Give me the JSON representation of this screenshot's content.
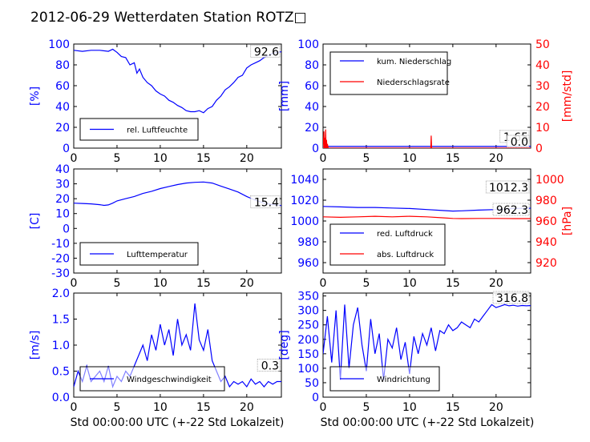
{
  "title": "2012-06-29 Wetterdaten Station ROTZ□",
  "x_label": "Std 00:00:00 UTC (+-22 Std Lokalzeit)",
  "colors": {
    "left_axis": "#0000ff",
    "right_axis": "#ff0000",
    "series_blue": "#0000ff",
    "series_red": "#ff0000"
  },
  "chart_data": [
    {
      "id": "humidity",
      "type": "line",
      "ylabel": "[%]",
      "ylim": [
        0,
        100
      ],
      "yticks": [
        0,
        20,
        40,
        60,
        80,
        100
      ],
      "xlim": [
        0,
        24
      ],
      "xticks": [
        0,
        5,
        10,
        15,
        20
      ],
      "series": [
        {
          "name": "rel. Luftfeuchte",
          "color": "#0000ff",
          "x": [
            0,
            1,
            2,
            3,
            4,
            4.5,
            5,
            5.5,
            6,
            6.5,
            7,
            7.3,
            7.6,
            8,
            8.5,
            9,
            9.5,
            10,
            10.5,
            11,
            11.5,
            12,
            12.5,
            13,
            13.5,
            14,
            14.5,
            15,
            15.5,
            16,
            16.5,
            17,
            17.5,
            18,
            18.5,
            19,
            19.5,
            20,
            20.5,
            21,
            21.5,
            22,
            22.5,
            23,
            23.5,
            24
          ],
          "y": [
            94,
            93,
            94,
            94,
            93,
            95,
            92,
            88,
            87,
            80,
            82,
            72,
            76,
            68,
            63,
            60,
            55,
            52,
            50,
            46,
            44,
            41,
            39,
            36,
            35,
            35,
            36,
            34,
            38,
            40,
            46,
            50,
            56,
            59,
            63,
            68,
            70,
            77,
            80,
            82,
            84,
            87,
            89,
            91,
            92,
            92.6
          ]
        }
      ],
      "last_value_label": "92.6"
    },
    {
      "id": "precip",
      "type": "line",
      "ylabel": "[mm]",
      "ylim": [
        0,
        100
      ],
      "yticks": [
        0,
        20,
        40,
        60,
        80,
        100
      ],
      "y2label": "[mm/std]",
      "y2lim": [
        0,
        50
      ],
      "y2ticks": [
        0,
        10,
        20,
        30,
        40,
        50
      ],
      "xlim": [
        0,
        24
      ],
      "xticks": [
        0,
        5,
        10,
        15,
        20
      ],
      "series": [
        {
          "name": "kum. Niederschlag",
          "color": "#0000ff",
          "axis": "left",
          "x": [
            0,
            24
          ],
          "y": [
            1.65,
            1.65
          ]
        },
        {
          "name": "Niederschlagsrate",
          "color": "#ff0000",
          "axis": "right",
          "x": [
            0,
            0.1,
            0.15,
            0.2,
            0.25,
            0.3,
            0.35,
            0.4,
            0.45,
            0.5,
            0.6,
            12.45,
            12.5,
            12.55,
            12.6,
            24
          ],
          "y": [
            0,
            8,
            0,
            5,
            0,
            9,
            0,
            4,
            0,
            2,
            0,
            0,
            6,
            0,
            0,
            0
          ]
        }
      ],
      "last_value_labels": [
        "1.65",
        "0.0"
      ]
    },
    {
      "id": "temperature",
      "type": "line",
      "ylabel": "[C]",
      "ylim": [
        -30,
        40
      ],
      "yticks": [
        -30,
        -20,
        -10,
        0,
        10,
        20,
        30,
        40
      ],
      "xlim": [
        0,
        24
      ],
      "xticks": [
        0,
        5,
        10,
        15,
        20
      ],
      "series": [
        {
          "name": "Lufttemperatur",
          "color": "#0000ff",
          "x": [
            0,
            1,
            2,
            3,
            3.5,
            4,
            4.5,
            5,
            6,
            7,
            8,
            9,
            10,
            11,
            12,
            13,
            14,
            15,
            16,
            17,
            18,
            19,
            20,
            21,
            22,
            23,
            24
          ],
          "y": [
            17,
            16.8,
            16.5,
            16,
            15.5,
            15.8,
            17,
            18.5,
            20,
            21.5,
            23.5,
            25,
            26.8,
            28.2,
            29.5,
            30.5,
            31,
            31.2,
            30.5,
            28.5,
            26.5,
            24.5,
            21.5,
            19,
            17,
            16,
            15.4
          ]
        }
      ],
      "last_value_label": "15.4"
    },
    {
      "id": "pressure",
      "type": "line",
      "ylabel": "",
      "ylim": [
        950,
        1050
      ],
      "yticks": [
        960,
        980,
        1000,
        1020,
        1040
      ],
      "y2label": "[hPa]",
      "y2lim": [
        910,
        1010
      ],
      "y2ticks": [
        920,
        940,
        960,
        980,
        1000
      ],
      "xlim": [
        0,
        24
      ],
      "xticks": [
        0,
        5,
        10,
        15,
        20
      ],
      "series": [
        {
          "name": "red. Luftdruck",
          "color": "#0000ff",
          "axis": "left",
          "x": [
            0,
            2,
            4,
            6,
            8,
            10,
            12,
            14,
            15,
            16,
            18,
            20,
            22,
            24
          ],
          "y": [
            1014,
            1013.5,
            1013,
            1013,
            1012.5,
            1012,
            1011,
            1010,
            1009.5,
            1009.8,
            1010.5,
            1011,
            1012,
            1012.3
          ]
        },
        {
          "name": "abs. Luftdruck",
          "color": "#ff0000",
          "axis": "right",
          "x": [
            0,
            2,
            4,
            6,
            8,
            10,
            12,
            14,
            15,
            16,
            18,
            20,
            22,
            24
          ],
          "y": [
            964,
            963.5,
            964,
            964.5,
            964,
            964.5,
            964,
            963,
            962.5,
            962.3,
            962.5,
            962.5,
            962.3,
            962.3
          ]
        }
      ],
      "last_value_labels": [
        "1012.3",
        "962.3"
      ]
    },
    {
      "id": "wind_speed",
      "type": "line",
      "ylabel": "[m/s]",
      "ylim": [
        0,
        2.0
      ],
      "yticks": [
        0.0,
        0.5,
        1.0,
        1.5,
        2.0
      ],
      "xlim": [
        0,
        24
      ],
      "xticks": [
        0,
        5,
        10,
        15,
        20
      ],
      "series": [
        {
          "name": "Windgeschwindigkeit",
          "color": "#0000ff",
          "x": [
            0,
            0.5,
            1,
            1.5,
            2,
            2.5,
            3,
            3.5,
            4,
            4.5,
            5,
            5.5,
            6,
            6.5,
            7,
            7.5,
            8,
            8.5,
            9,
            9.5,
            10,
            10.5,
            11,
            11.5,
            12,
            12.5,
            13,
            13.5,
            14,
            14.5,
            15,
            15.5,
            16,
            16.5,
            17,
            17.5,
            18,
            18.5,
            19,
            19.5,
            20,
            20.5,
            21,
            21.5,
            22,
            22.5,
            23,
            23.5,
            24
          ],
          "y": [
            0.2,
            0.5,
            0.3,
            0.6,
            0.3,
            0.4,
            0.5,
            0.3,
            0.6,
            0.2,
            0.4,
            0.3,
            0.5,
            0.4,
            0.6,
            0.8,
            1.0,
            0.7,
            1.2,
            0.9,
            1.4,
            1.0,
            1.3,
            0.8,
            1.5,
            1.0,
            1.2,
            0.9,
            1.8,
            1.1,
            0.9,
            1.3,
            0.7,
            0.5,
            0.3,
            0.4,
            0.2,
            0.3,
            0.25,
            0.3,
            0.2,
            0.35,
            0.25,
            0.3,
            0.2,
            0.3,
            0.25,
            0.3,
            0.3
          ]
        }
      ],
      "last_value_label": "0.3"
    },
    {
      "id": "wind_dir",
      "type": "line",
      "ylabel": "[deg]",
      "ylim": [
        0,
        360
      ],
      "yticks": [
        0,
        50,
        100,
        150,
        200,
        250,
        300,
        350
      ],
      "xlim": [
        0,
        24
      ],
      "xticks": [
        0,
        5,
        10,
        15,
        20
      ],
      "series": [
        {
          "name": "Windrichtung",
          "color": "#0000ff",
          "x": [
            0,
            0.5,
            1,
            1.5,
            2,
            2.5,
            3,
            3.5,
            4,
            4.5,
            5,
            5.5,
            6,
            6.5,
            7,
            7.5,
            8,
            8.5,
            9,
            9.5,
            10,
            10.5,
            11,
            11.5,
            12,
            12.5,
            13,
            13.5,
            14,
            14.5,
            15,
            15.5,
            16,
            16.5,
            17,
            17.5,
            18,
            18.5,
            19,
            19.5,
            20,
            20.5,
            21,
            21.5,
            22,
            22.5,
            23,
            23.5,
            24
          ],
          "y": [
            150,
            280,
            120,
            300,
            60,
            320,
            100,
            250,
            310,
            180,
            90,
            270,
            150,
            220,
            60,
            200,
            170,
            240,
            130,
            190,
            80,
            210,
            150,
            220,
            180,
            240,
            160,
            230,
            220,
            250,
            230,
            240,
            260,
            250,
            240,
            270,
            260,
            280,
            300,
            320,
            310,
            315,
            320,
            316,
            318,
            315,
            317,
            316,
            316.8
          ]
        }
      ],
      "last_value_label": "316.8"
    }
  ]
}
